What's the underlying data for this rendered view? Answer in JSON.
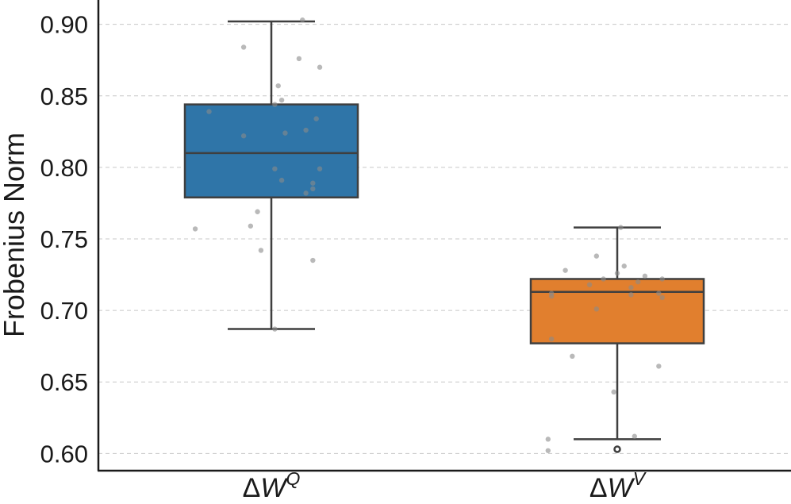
{
  "chart_data": {
    "type": "box",
    "title": "",
    "xlabel": "",
    "ylabel": "Frobenius Norm",
    "ylim": [
      0.588,
      0.917
    ],
    "yticks": [
      0.6,
      0.65,
      0.7,
      0.75,
      0.8,
      0.85,
      0.9
    ],
    "ytick_labels": [
      "0.60",
      "0.65",
      "0.70",
      "0.75",
      "0.80",
      "0.85",
      "0.90"
    ],
    "grid": "y-dashed",
    "categories": [
      {
        "label_prefix": "ΔW",
        "label_superscript": "Q",
        "color": "#2f75a8",
        "whisker_low": 0.687,
        "q1": 0.779,
        "median": 0.81,
        "q3": 0.844,
        "whisker_high": 0.902,
        "outliers": [],
        "points": [
          {
            "x": 0.92,
            "y": 0.884
          },
          {
            "x": 1.09,
            "y": 0.903
          },
          {
            "x": 1.14,
            "y": 0.87
          },
          {
            "x": 1.08,
            "y": 0.876
          },
          {
            "x": 1.02,
            "y": 0.857
          },
          {
            "x": 1.03,
            "y": 0.847
          },
          {
            "x": 1.01,
            "y": 0.844
          },
          {
            "x": 0.82,
            "y": 0.839
          },
          {
            "x": 1.13,
            "y": 0.834
          },
          {
            "x": 1.1,
            "y": 0.826
          },
          {
            "x": 1.04,
            "y": 0.824
          },
          {
            "x": 0.92,
            "y": 0.822
          },
          {
            "x": 1.01,
            "y": 0.799
          },
          {
            "x": 1.14,
            "y": 0.799
          },
          {
            "x": 1.03,
            "y": 0.791
          },
          {
            "x": 1.12,
            "y": 0.789
          },
          {
            "x": 1.12,
            "y": 0.785
          },
          {
            "x": 1.1,
            "y": 0.782
          },
          {
            "x": 0.96,
            "y": 0.769
          },
          {
            "x": 0.94,
            "y": 0.759
          },
          {
            "x": 0.78,
            "y": 0.757
          },
          {
            "x": 0.97,
            "y": 0.742
          },
          {
            "x": 1.12,
            "y": 0.735
          },
          {
            "x": 1.01,
            "y": 0.687
          }
        ]
      },
      {
        "label_prefix": "ΔW",
        "label_superscript": "V",
        "color": "#e17f2e",
        "whisker_low": 0.61,
        "q1": 0.677,
        "median": 0.713,
        "q3": 0.722,
        "whisker_high": 0.758,
        "outliers": [
          0.603
        ],
        "points": [
          {
            "x": 2.01,
            "y": 0.758
          },
          {
            "x": 1.94,
            "y": 0.738
          },
          {
            "x": 2.02,
            "y": 0.731
          },
          {
            "x": 1.85,
            "y": 0.728
          },
          {
            "x": 2.0,
            "y": 0.726
          },
          {
            "x": 2.08,
            "y": 0.724
          },
          {
            "x": 1.96,
            "y": 0.722
          },
          {
            "x": 2.13,
            "y": 0.722
          },
          {
            "x": 2.06,
            "y": 0.72
          },
          {
            "x": 1.92,
            "y": 0.718
          },
          {
            "x": 2.04,
            "y": 0.716
          },
          {
            "x": 1.81,
            "y": 0.712
          },
          {
            "x": 2.12,
            "y": 0.712
          },
          {
            "x": 1.81,
            "y": 0.71
          },
          {
            "x": 2.04,
            "y": 0.711
          },
          {
            "x": 2.13,
            "y": 0.709
          },
          {
            "x": 1.94,
            "y": 0.701
          },
          {
            "x": 1.81,
            "y": 0.68
          },
          {
            "x": 1.87,
            "y": 0.668
          },
          {
            "x": 2.12,
            "y": 0.661
          },
          {
            "x": 1.99,
            "y": 0.643
          },
          {
            "x": 2.05,
            "y": 0.612
          },
          {
            "x": 1.8,
            "y": 0.61
          },
          {
            "x": 1.8,
            "y": 0.602
          }
        ]
      }
    ]
  }
}
